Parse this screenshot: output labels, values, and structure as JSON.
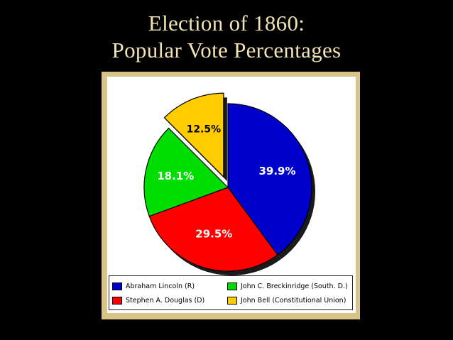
{
  "slide": {
    "title_line1": "Election of 1860:",
    "title_line2": "Popular Vote Percentages"
  },
  "chart_data": {
    "type": "pie",
    "title": "Election of 1860: Popular Vote Percentages",
    "exploded": [
      "John Bell (Constitutional Union)"
    ],
    "slices": [
      {
        "name": "Abraham Lincoln (R)",
        "value": 39.9,
        "label": "39.9%",
        "color": "#0000cc"
      },
      {
        "name": "Stephen A. Douglas (D)",
        "value": 29.5,
        "label": "29.5%",
        "color": "#ff0000"
      },
      {
        "name": "John C. Breckinridge (South. D.)",
        "value": 18.1,
        "label": "18.1%",
        "color": "#00dd00"
      },
      {
        "name": "John Bell (Constitutional Union)",
        "value": 12.5,
        "label": "12.5%",
        "color": "#ffcc00"
      }
    ],
    "legend_placement": "bottom"
  }
}
